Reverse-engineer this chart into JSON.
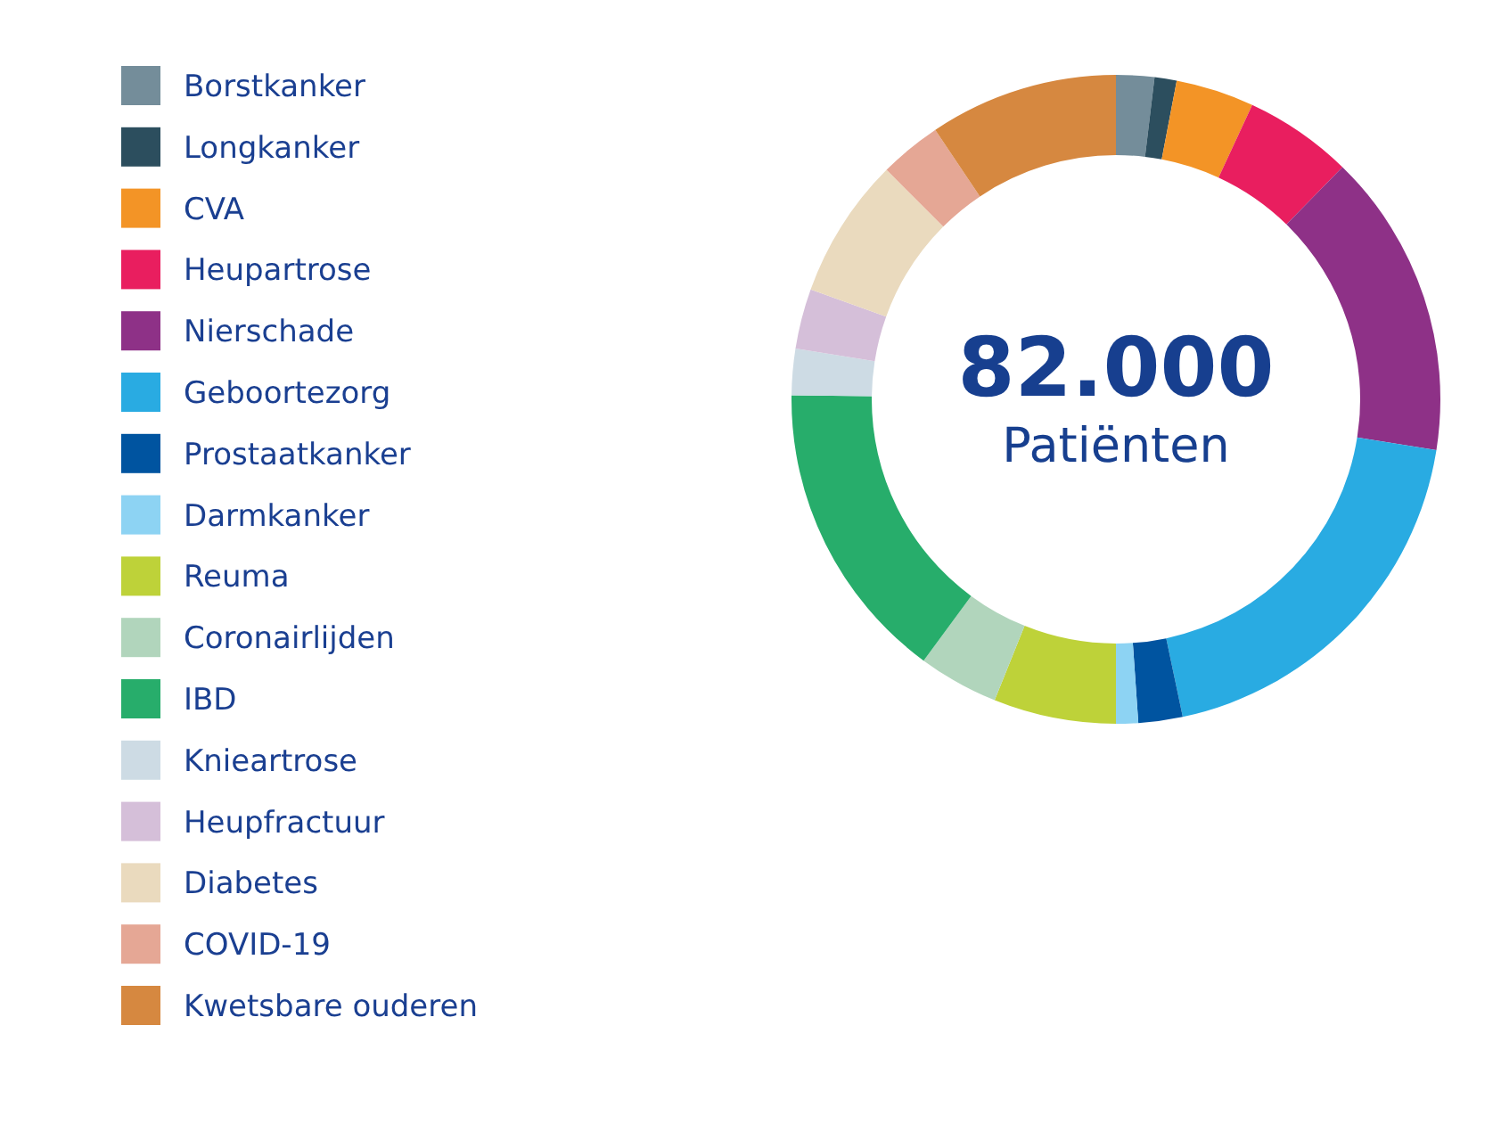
{
  "chart_data": {
    "type": "donut",
    "title": "82.000",
    "subtitle": "Patiënten",
    "legend": "left",
    "categories": [
      "Borstkanker",
      "Longkanker",
      "CVA",
      "Heupartrose",
      "Nierschade",
      "Geboortezorg",
      "Prostaatkanker",
      "Darmkanker",
      "Reuma",
      "Coronairlijden",
      "IBD",
      "Knieartrose",
      "Heupfractuur",
      "Diabetes",
      "COVID-19",
      "Kwetsbare ouderen"
    ],
    "values": [
      1.9,
      1.1,
      3.9,
      5.4,
      15.2,
      19.2,
      2.2,
      1.1,
      6.1,
      4.0,
      15.1,
      2.3,
      3.0,
      7.0,
      3.1,
      9.4
    ],
    "colors": [
      "#748d9a",
      "#2c4e5e",
      "#f39426",
      "#e91e5f",
      "#8e3187",
      "#29abe2",
      "#0054a0",
      "#8dd3f3",
      "#bed239",
      "#b1d5bc",
      "#27ad6b",
      "#cddbe4",
      "#d5bfd9",
      "#eadabe",
      "#e5a795",
      "#d68840"
    ]
  }
}
